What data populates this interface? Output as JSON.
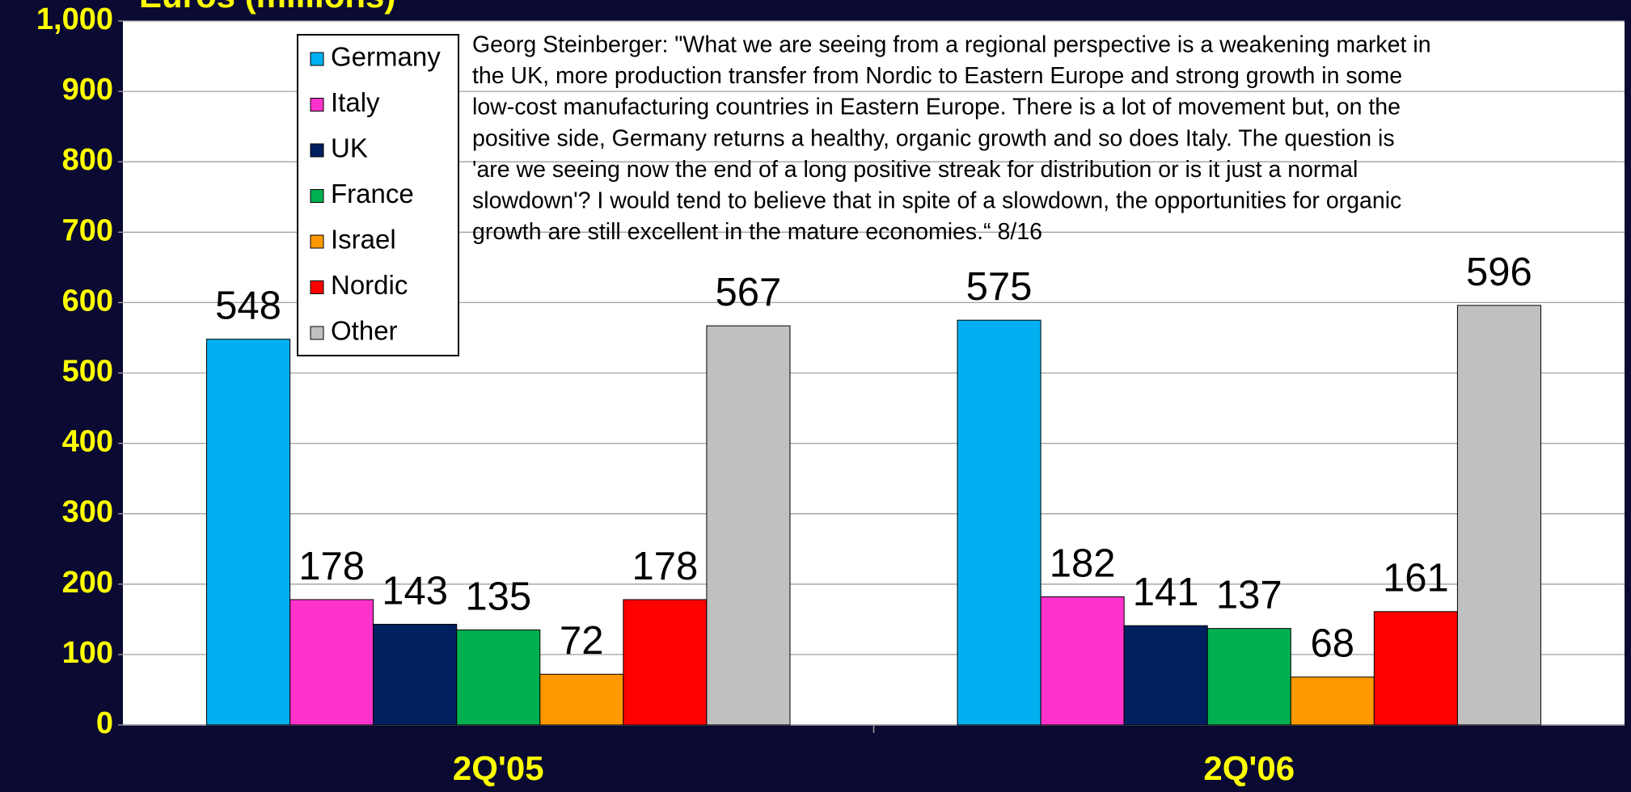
{
  "chart_data": {
    "type": "bar",
    "title": "Euros (millions)",
    "categories": [
      "2Q'05",
      "2Q'06"
    ],
    "series": [
      {
        "name": "Germany",
        "color": "#00b0f0",
        "values": [
          548,
          575
        ]
      },
      {
        "name": "Italy",
        "color": "#ff33cc",
        "values": [
          178,
          182
        ]
      },
      {
        "name": "UK",
        "color": "#002060",
        "values": [
          143,
          141
        ]
      },
      {
        "name": "France",
        "color": "#00b050",
        "values": [
          135,
          137
        ]
      },
      {
        "name": "Israel",
        "color": "#ff9900",
        "values": [
          72,
          68
        ]
      },
      {
        "name": "Nordic",
        "color": "#ff0000",
        "values": [
          178,
          161
        ]
      },
      {
        "name": "Other",
        "color": "#c0c0c0",
        "values": [
          567,
          596
        ]
      }
    ],
    "ylim": [
      0,
      1000
    ],
    "yticks": [
      0,
      100,
      200,
      300,
      400,
      500,
      600,
      700,
      800,
      900,
      {
        "value": 1000,
        "label": "1,000"
      }
    ],
    "grid": true,
    "legend": "top-left",
    "annotation": [
      "Georg Steinberger: \"What we are seeing from a regional perspective is a weakening market in",
      "the UK, more production transfer from Nordic to Eastern Europe and strong growth in some",
      "low-cost manufacturing countries in Eastern Europe. There is  a lot of movement but, on the",
      "positive side, Germany returns a healthy, organic growth and so does Italy. The question is",
      "'are we seeing now the end of a long  positive streak for distribution or is it just a normal",
      "slowdown'? I would tend to believe that in spite of a  slowdown, the opportunities for organic",
      "growth are  still excellent in the mature economies.“ 8/16"
    ]
  }
}
